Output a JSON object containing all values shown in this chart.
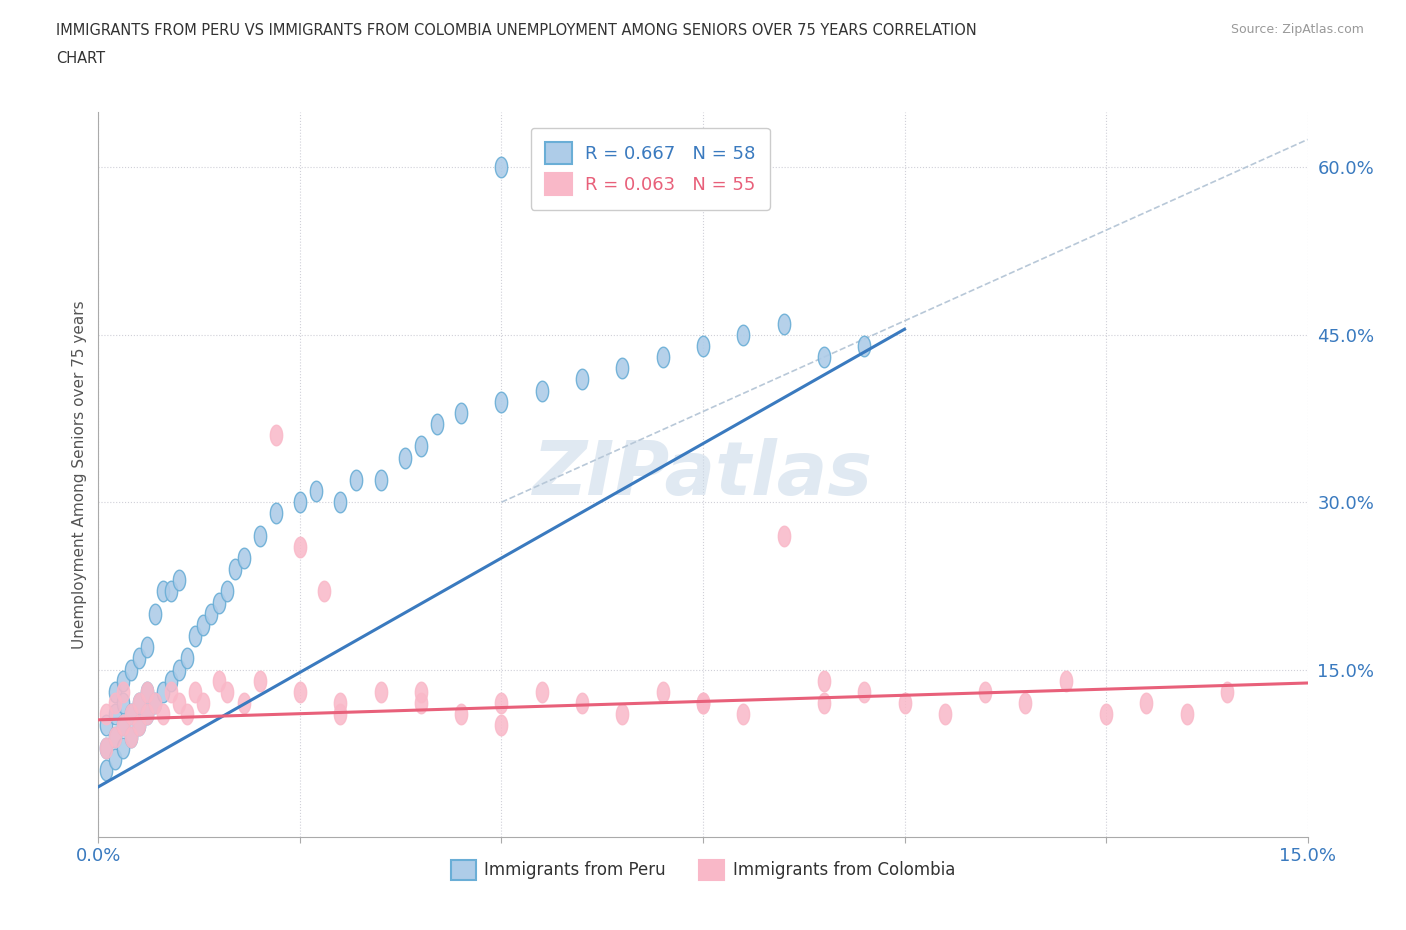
{
  "title_line1": "IMMIGRANTS FROM PERU VS IMMIGRANTS FROM COLOMBIA UNEMPLOYMENT AMONG SENIORS OVER 75 YEARS CORRELATION",
  "title_line2": "CHART",
  "source": "Source: ZipAtlas.com",
  "ylabel": "Unemployment Among Seniors over 75 years",
  "xlim": [
    0.0,
    0.15
  ],
  "ylim": [
    0.0,
    0.65
  ],
  "xticks": [
    0.0,
    0.025,
    0.05,
    0.075,
    0.1,
    0.125,
    0.15
  ],
  "xtick_labels": [
    "0.0%",
    "",
    "",
    "",
    "",
    "",
    "15.0%"
  ],
  "yticks_right": [
    0.15,
    0.3,
    0.45,
    0.6
  ],
  "ytick_right_labels": [
    "15.0%",
    "30.0%",
    "45.0%",
    "60.0%"
  ],
  "peru_R": 0.667,
  "peru_N": 58,
  "colombia_R": 0.063,
  "colombia_N": 55,
  "peru_color": "#aecce8",
  "peru_edge_color": "#6aaed6",
  "colombia_color": "#f9b8c8",
  "colombia_edge_color": "#f080a0",
  "peru_line_color": "#3a7abf",
  "colombia_line_color": "#e8607a",
  "ref_line_color": "#b8c8d8",
  "watermark": "ZIPatlas",
  "peru_line_x": [
    0.0,
    0.1
  ],
  "peru_line_y": [
    0.045,
    0.455
  ],
  "colombia_line_x": [
    0.0,
    0.15
  ],
  "colombia_line_y": [
    0.105,
    0.138
  ],
  "ref_line_x": [
    0.05,
    0.15
  ],
  "ref_line_y": [
    0.3,
    0.625
  ],
  "peru_scatter_x": [
    0.001,
    0.001,
    0.001,
    0.002,
    0.002,
    0.002,
    0.002,
    0.003,
    0.003,
    0.003,
    0.003,
    0.004,
    0.004,
    0.004,
    0.005,
    0.005,
    0.005,
    0.006,
    0.006,
    0.006,
    0.007,
    0.007,
    0.008,
    0.008,
    0.009,
    0.009,
    0.01,
    0.01,
    0.011,
    0.012,
    0.013,
    0.014,
    0.015,
    0.016,
    0.017,
    0.018,
    0.02,
    0.022,
    0.025,
    0.027,
    0.03,
    0.032,
    0.035,
    0.038,
    0.04,
    0.042,
    0.045,
    0.05,
    0.055,
    0.06,
    0.065,
    0.07,
    0.075,
    0.08,
    0.085,
    0.09,
    0.095,
    0.05
  ],
  "peru_scatter_y": [
    0.06,
    0.08,
    0.1,
    0.07,
    0.09,
    0.11,
    0.13,
    0.08,
    0.1,
    0.12,
    0.14,
    0.09,
    0.11,
    0.15,
    0.1,
    0.12,
    0.16,
    0.11,
    0.13,
    0.17,
    0.12,
    0.2,
    0.13,
    0.22,
    0.14,
    0.22,
    0.15,
    0.23,
    0.16,
    0.18,
    0.19,
    0.2,
    0.21,
    0.22,
    0.24,
    0.25,
    0.27,
    0.29,
    0.3,
    0.31,
    0.3,
    0.32,
    0.32,
    0.34,
    0.35,
    0.37,
    0.38,
    0.39,
    0.4,
    0.41,
    0.42,
    0.43,
    0.44,
    0.45,
    0.46,
    0.43,
    0.44,
    0.6
  ],
  "colombia_scatter_x": [
    0.001,
    0.001,
    0.002,
    0.002,
    0.003,
    0.003,
    0.004,
    0.004,
    0.005,
    0.005,
    0.006,
    0.006,
    0.007,
    0.008,
    0.009,
    0.01,
    0.011,
    0.012,
    0.013,
    0.015,
    0.016,
    0.018,
    0.02,
    0.022,
    0.025,
    0.028,
    0.03,
    0.035,
    0.04,
    0.045,
    0.05,
    0.055,
    0.06,
    0.065,
    0.07,
    0.075,
    0.08,
    0.085,
    0.09,
    0.095,
    0.1,
    0.105,
    0.11,
    0.115,
    0.12,
    0.125,
    0.13,
    0.135,
    0.14,
    0.025,
    0.05,
    0.03,
    0.04,
    0.075,
    0.09
  ],
  "colombia_scatter_y": [
    0.08,
    0.11,
    0.09,
    0.12,
    0.1,
    0.13,
    0.09,
    0.11,
    0.1,
    0.12,
    0.11,
    0.13,
    0.12,
    0.11,
    0.13,
    0.12,
    0.11,
    0.13,
    0.12,
    0.14,
    0.13,
    0.12,
    0.14,
    0.36,
    0.13,
    0.22,
    0.12,
    0.13,
    0.12,
    0.11,
    0.1,
    0.13,
    0.12,
    0.11,
    0.13,
    0.12,
    0.11,
    0.27,
    0.12,
    0.13,
    0.12,
    0.11,
    0.13,
    0.12,
    0.14,
    0.11,
    0.12,
    0.11,
    0.13,
    0.26,
    0.12,
    0.11,
    0.13,
    0.12,
    0.14
  ]
}
